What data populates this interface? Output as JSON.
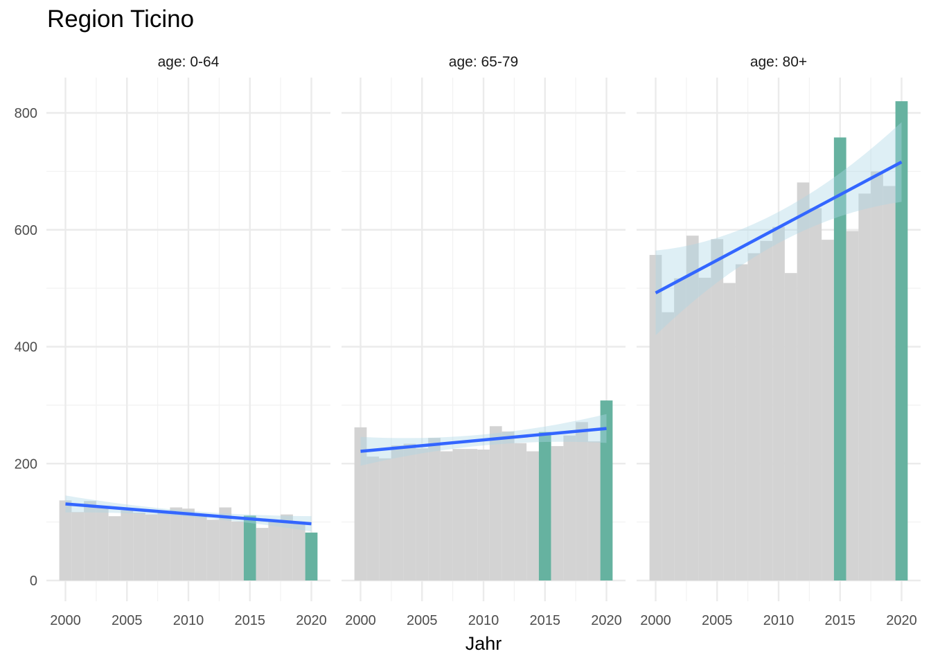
{
  "chart_data": {
    "type": "bar",
    "title": "Region Ticino",
    "xlabel": "Jahr",
    "ylabel": "",
    "ylim": [
      0,
      860
    ],
    "xlim": [
      1999.5,
      2020.5
    ],
    "x_ticks": [
      2000,
      2005,
      2010,
      2015,
      2020
    ],
    "y_ticks": [
      0,
      200,
      400,
      600,
      800
    ],
    "grid": true,
    "legend": "none",
    "colors": {
      "bar_default": "#d3d3d3",
      "bar_highlight": "#66b2a0",
      "trend_line": "#3366ff",
      "ribbon": "#add8e6"
    },
    "highlight_years": [
      2015,
      2020
    ],
    "years": [
      2000,
      2001,
      2002,
      2003,
      2004,
      2005,
      2006,
      2007,
      2008,
      2009,
      2010,
      2011,
      2012,
      2013,
      2014,
      2015,
      2016,
      2017,
      2018,
      2019,
      2020
    ],
    "panels": [
      {
        "label": "age: 0-64",
        "values": [
          137,
          117,
          136,
          126,
          110,
          120,
          116,
          113,
          118,
          125,
          123,
          112,
          104,
          125,
          101,
          111,
          90,
          103,
          113,
          101,
          82
        ],
        "trend": {
          "start": 131,
          "end": 97,
          "ci_start": 10,
          "ci_end": 9
        }
      },
      {
        "label": "age: 65-79",
        "values": [
          262,
          212,
          209,
          231,
          234,
          226,
          244,
          221,
          225,
          225,
          224,
          264,
          255,
          235,
          221,
          254,
          230,
          248,
          271,
          238,
          308
        ],
        "trend": {
          "start": 221,
          "end": 260,
          "ci_start": 17,
          "ci_end": 17
        }
      },
      {
        "label": "age: 80+",
        "values": [
          557,
          459,
          517,
          590,
          518,
          584,
          509,
          541,
          560,
          581,
          605,
          526,
          681,
          637,
          583,
          758,
          598,
          662,
          700,
          675,
          820
        ],
        "trend": {
          "start": 492,
          "end": 716,
          "ci_start": 50,
          "ci_end": 47
        }
      }
    ]
  }
}
